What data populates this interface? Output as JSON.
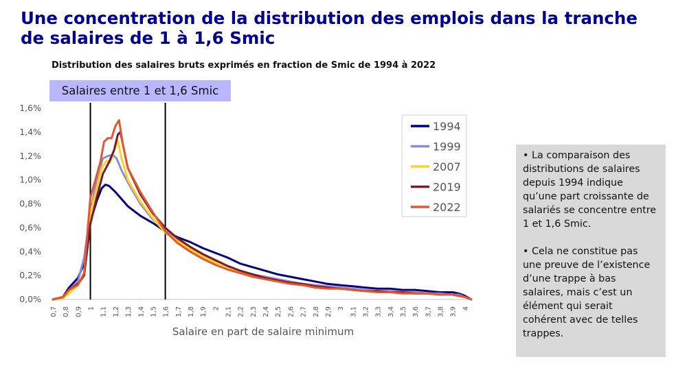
{
  "header": {
    "title": "Une concentration de la distribution des emplois dans la tranche de salaires de 1 à 1,6 Smic",
    "subtitle": "Distribution des salaires bruts exprimés en fraction de Smic de 1994 à 2022"
  },
  "band": {
    "label": "Salaires entre 1 et 1,6 Smic",
    "from": 1.0,
    "to": 1.6
  },
  "note": {
    "paragraphs": [
      "• La comparaison des distributions de salaires depuis 1994 indique qu’une part croissante de salariés se concentre entre 1 et 1,6 Smic.",
      "• Cela ne constitue pas une preuve de l’existence d’une trappe à bas salaires, mais c’est un élément qui serait cohérent avec de telles trappes."
    ]
  },
  "chart_data": {
    "type": "line",
    "title": "Distribution des salaires bruts exprimés en fraction de Smic de 1994 à 2022",
    "xlabel": "Salaire en part de salaire minimum",
    "ylabel": "",
    "xlim": [
      0.7,
      4.05
    ],
    "ylim": [
      0,
      1.6
    ],
    "y_ticks": [
      0,
      0.2,
      0.4,
      0.6,
      0.8,
      1.0,
      1.2,
      1.4,
      1.6
    ],
    "y_tick_labels": [
      "0,0%",
      "0,2%",
      "0,4%",
      "0,6%",
      "0,8%",
      "1,0%",
      "1,2%",
      "1,4%",
      "1,6%"
    ],
    "x_ticks": [
      0.7,
      0.8,
      0.9,
      1,
      1.1,
      1.2,
      1.3,
      1.4,
      1.5,
      1.6,
      1.7,
      1.8,
      1.9,
      2,
      2.1,
      2.2,
      2.3,
      2.4,
      2.5,
      2.6,
      2.7,
      2.8,
      2.9,
      3,
      3.1,
      3.2,
      3.3,
      3.4,
      3.5,
      3.6,
      3.7,
      3.8,
      3.9,
      4
    ],
    "x_tick_labels": [
      "0,7",
      "0,8",
      "0,9",
      "1",
      "1,1",
      "1,2",
      "1,3",
      "1,4",
      "1,5",
      "1,6",
      "1,7",
      "1,8",
      "1,9",
      "2",
      "2,1",
      "2,2",
      "2,3",
      "2,4",
      "2,5",
      "2,6",
      "2,7",
      "2,8",
      "2,9",
      "3",
      "3,1",
      "3,2",
      "3,3",
      "3,4",
      "3,5",
      "3,6",
      "3,7",
      "3,8",
      "3,9",
      "4"
    ],
    "vertical_lines": [
      1.0,
      1.6
    ],
    "grid": false,
    "legend_position": "top-right",
    "series": [
      {
        "name": "1994",
        "color": "#000080",
        "points": [
          [
            0.7,
            0
          ],
          [
            0.78,
            0.02
          ],
          [
            0.83,
            0.1
          ],
          [
            0.9,
            0.18
          ],
          [
            0.95,
            0.3
          ],
          [
            1.0,
            0.65
          ],
          [
            1.05,
            0.82
          ],
          [
            1.09,
            0.93
          ],
          [
            1.12,
            0.96
          ],
          [
            1.15,
            0.95
          ],
          [
            1.2,
            0.9
          ],
          [
            1.25,
            0.84
          ],
          [
            1.3,
            0.78
          ],
          [
            1.4,
            0.7
          ],
          [
            1.5,
            0.64
          ],
          [
            1.6,
            0.57
          ],
          [
            1.7,
            0.52
          ],
          [
            1.8,
            0.48
          ],
          [
            1.9,
            0.43
          ],
          [
            2.0,
            0.39
          ],
          [
            2.1,
            0.35
          ],
          [
            2.2,
            0.3
          ],
          [
            2.3,
            0.27
          ],
          [
            2.4,
            0.24
          ],
          [
            2.5,
            0.21
          ],
          [
            2.6,
            0.19
          ],
          [
            2.7,
            0.17
          ],
          [
            2.8,
            0.15
          ],
          [
            2.9,
            0.13
          ],
          [
            3.0,
            0.12
          ],
          [
            3.1,
            0.11
          ],
          [
            3.2,
            0.1
          ],
          [
            3.3,
            0.09
          ],
          [
            3.4,
            0.09
          ],
          [
            3.5,
            0.08
          ],
          [
            3.6,
            0.08
          ],
          [
            3.7,
            0.07
          ],
          [
            3.8,
            0.06
          ],
          [
            3.9,
            0.06
          ],
          [
            3.95,
            0.05
          ],
          [
            4.0,
            0.03
          ],
          [
            4.05,
            0.0
          ]
        ]
      },
      {
        "name": "1999",
        "color": "#8b8bd8",
        "points": [
          [
            0.7,
            0
          ],
          [
            0.78,
            0.02
          ],
          [
            0.83,
            0.08
          ],
          [
            0.9,
            0.15
          ],
          [
            0.95,
            0.35
          ],
          [
            1.0,
            0.72
          ],
          [
            1.05,
            1.0
          ],
          [
            1.1,
            1.18
          ],
          [
            1.14,
            1.2
          ],
          [
            1.18,
            1.21
          ],
          [
            1.21,
            1.18
          ],
          [
            1.25,
            1.08
          ],
          [
            1.3,
            0.98
          ],
          [
            1.4,
            0.8
          ],
          [
            1.5,
            0.67
          ],
          [
            1.6,
            0.58
          ],
          [
            1.7,
            0.5
          ],
          [
            1.8,
            0.43
          ],
          [
            1.9,
            0.37
          ],
          [
            2.0,
            0.32
          ],
          [
            2.1,
            0.28
          ],
          [
            2.2,
            0.24
          ],
          [
            2.3,
            0.21
          ],
          [
            2.4,
            0.19
          ],
          [
            2.5,
            0.17
          ],
          [
            2.6,
            0.15
          ],
          [
            2.7,
            0.13
          ],
          [
            2.8,
            0.12
          ],
          [
            2.9,
            0.11
          ],
          [
            3.0,
            0.1
          ],
          [
            3.1,
            0.09
          ],
          [
            3.2,
            0.08
          ],
          [
            3.3,
            0.07
          ],
          [
            3.4,
            0.07
          ],
          [
            3.5,
            0.06
          ],
          [
            3.6,
            0.06
          ],
          [
            3.7,
            0.05
          ],
          [
            3.8,
            0.05
          ],
          [
            3.9,
            0.04
          ],
          [
            3.95,
            0.04
          ],
          [
            4.0,
            0.02
          ],
          [
            4.05,
            0.0
          ]
        ]
      },
      {
        "name": "2007",
        "color": "#ffd21f",
        "points": [
          [
            0.7,
            0
          ],
          [
            0.78,
            0.01
          ],
          [
            0.83,
            0.05
          ],
          [
            0.9,
            0.12
          ],
          [
            0.95,
            0.2
          ],
          [
            1.0,
            0.72
          ],
          [
            1.05,
            0.92
          ],
          [
            1.09,
            1.1
          ],
          [
            1.13,
            1.16
          ],
          [
            1.16,
            1.15
          ],
          [
            1.19,
            1.25
          ],
          [
            1.22,
            1.33
          ],
          [
            1.25,
            1.18
          ],
          [
            1.3,
            1.0
          ],
          [
            1.4,
            0.82
          ],
          [
            1.5,
            0.68
          ],
          [
            1.6,
            0.56
          ],
          [
            1.7,
            0.49
          ],
          [
            1.8,
            0.42
          ],
          [
            1.9,
            0.36
          ],
          [
            2.0,
            0.31
          ],
          [
            2.1,
            0.27
          ],
          [
            2.2,
            0.23
          ],
          [
            2.3,
            0.2
          ],
          [
            2.4,
            0.18
          ],
          [
            2.5,
            0.16
          ],
          [
            2.6,
            0.14
          ],
          [
            2.7,
            0.12
          ],
          [
            2.8,
            0.11
          ],
          [
            2.9,
            0.1
          ],
          [
            3.0,
            0.09
          ],
          [
            3.1,
            0.08
          ],
          [
            3.2,
            0.07
          ],
          [
            3.3,
            0.07
          ],
          [
            3.4,
            0.06
          ],
          [
            3.5,
            0.06
          ],
          [
            3.6,
            0.05
          ],
          [
            3.7,
            0.05
          ],
          [
            3.8,
            0.04
          ],
          [
            3.9,
            0.04
          ],
          [
            3.95,
            0.03
          ],
          [
            4.0,
            0.02
          ],
          [
            4.05,
            0.0
          ]
        ]
      },
      {
        "name": "2019",
        "color": "#7b1a2a",
        "points": [
          [
            0.7,
            0
          ],
          [
            0.78,
            0.02
          ],
          [
            0.83,
            0.08
          ],
          [
            0.9,
            0.13
          ],
          [
            0.95,
            0.2
          ],
          [
            1.0,
            0.63
          ],
          [
            1.05,
            0.85
          ],
          [
            1.1,
            1.05
          ],
          [
            1.15,
            1.15
          ],
          [
            1.19,
            1.25
          ],
          [
            1.22,
            1.38
          ],
          [
            1.24,
            1.4
          ],
          [
            1.27,
            1.25
          ],
          [
            1.3,
            1.1
          ],
          [
            1.4,
            0.88
          ],
          [
            1.5,
            0.72
          ],
          [
            1.6,
            0.6
          ],
          [
            1.7,
            0.51
          ],
          [
            1.8,
            0.44
          ],
          [
            1.9,
            0.38
          ],
          [
            2.0,
            0.33
          ],
          [
            2.1,
            0.28
          ],
          [
            2.2,
            0.24
          ],
          [
            2.3,
            0.21
          ],
          [
            2.4,
            0.18
          ],
          [
            2.5,
            0.16
          ],
          [
            2.6,
            0.14
          ],
          [
            2.7,
            0.13
          ],
          [
            2.8,
            0.11
          ],
          [
            2.9,
            0.1
          ],
          [
            3.0,
            0.09
          ],
          [
            3.1,
            0.08
          ],
          [
            3.2,
            0.07
          ],
          [
            3.3,
            0.07
          ],
          [
            3.4,
            0.06
          ],
          [
            3.5,
            0.06
          ],
          [
            3.6,
            0.05
          ],
          [
            3.7,
            0.05
          ],
          [
            3.8,
            0.04
          ],
          [
            3.9,
            0.04
          ],
          [
            3.95,
            0.03
          ],
          [
            4.0,
            0.02
          ],
          [
            4.05,
            0.0
          ]
        ]
      },
      {
        "name": "2022",
        "color": "#e4572e",
        "points": [
          [
            0.7,
            0
          ],
          [
            0.78,
            0.02
          ],
          [
            0.83,
            0.08
          ],
          [
            0.9,
            0.12
          ],
          [
            0.95,
            0.22
          ],
          [
            1.0,
            0.85
          ],
          [
            1.04,
            1.0
          ],
          [
            1.08,
            1.15
          ],
          [
            1.11,
            1.32
          ],
          [
            1.14,
            1.35
          ],
          [
            1.17,
            1.35
          ],
          [
            1.2,
            1.45
          ],
          [
            1.23,
            1.5
          ],
          [
            1.26,
            1.3
          ],
          [
            1.3,
            1.1
          ],
          [
            1.4,
            0.9
          ],
          [
            1.5,
            0.73
          ],
          [
            1.6,
            0.57
          ],
          [
            1.7,
            0.47
          ],
          [
            1.8,
            0.4
          ],
          [
            1.9,
            0.34
          ],
          [
            2.0,
            0.29
          ],
          [
            2.1,
            0.25
          ],
          [
            2.2,
            0.22
          ],
          [
            2.3,
            0.19
          ],
          [
            2.4,
            0.17
          ],
          [
            2.5,
            0.15
          ],
          [
            2.6,
            0.13
          ],
          [
            2.7,
            0.12
          ],
          [
            2.8,
            0.1
          ],
          [
            2.9,
            0.09
          ],
          [
            3.0,
            0.09
          ],
          [
            3.1,
            0.08
          ],
          [
            3.2,
            0.07
          ],
          [
            3.3,
            0.06
          ],
          [
            3.4,
            0.06
          ],
          [
            3.5,
            0.05
          ],
          [
            3.6,
            0.05
          ],
          [
            3.7,
            0.05
          ],
          [
            3.8,
            0.04
          ],
          [
            3.9,
            0.04
          ],
          [
            3.95,
            0.03
          ],
          [
            4.0,
            0.02
          ],
          [
            4.05,
            0.0
          ]
        ]
      }
    ]
  }
}
